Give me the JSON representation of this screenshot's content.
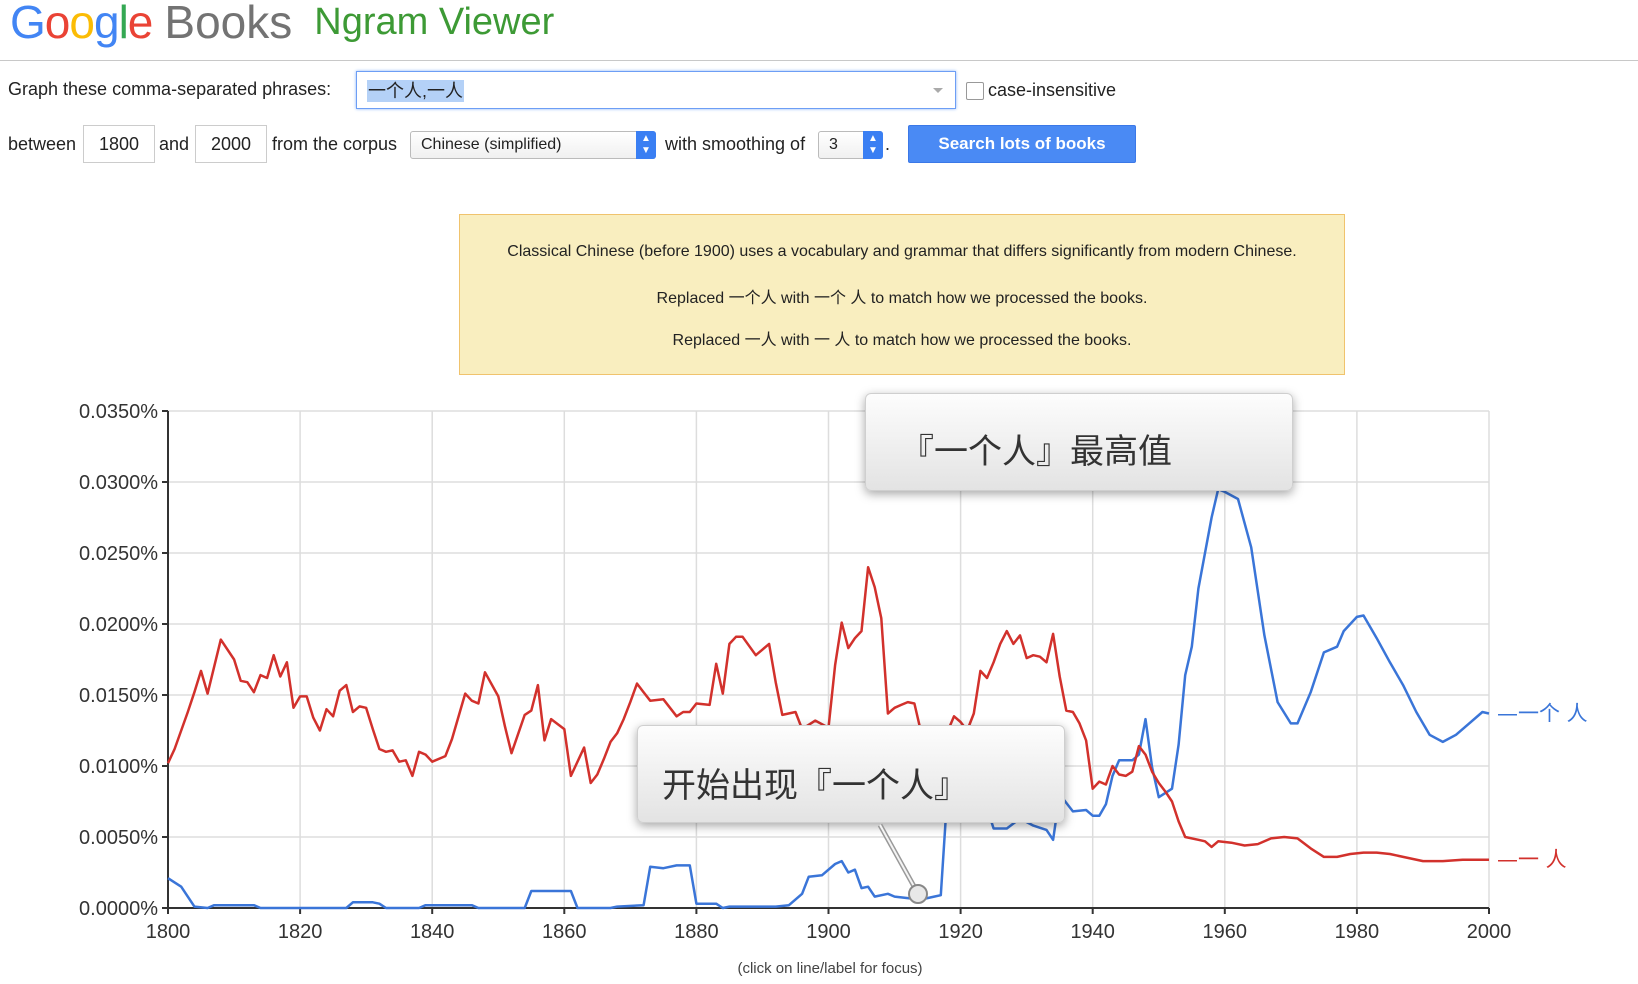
{
  "brand": {
    "google": "Google",
    "books": "Books",
    "product": "Ngram Viewer"
  },
  "colors": {
    "g_blue": "#4285f4",
    "g_red": "#ea4335",
    "g_yellow": "#fbbc05",
    "g_green": "#34a853",
    "series1": "#3a75d8",
    "series2": "#d2312c"
  },
  "form": {
    "phrases_label": "Graph these comma-separated phrases:",
    "phrases_value": "一个人,一人",
    "case_label": "case-insensitive",
    "between_label": "between",
    "start_year": "1800",
    "and_label": "and",
    "end_year": "2000",
    "corpus_label": "from the corpus",
    "corpus_value": "Chinese (simplified)",
    "smoothing_label": "with smoothing of",
    "smoothing_value": "3",
    "period": ".",
    "search_button": "Search lots of books"
  },
  "notice": {
    "line1": "Classical Chinese (before 1900) uses a vocabulary and grammar that differs significantly from modern Chinese.",
    "line2": "Replaced 一个人 with 一个 人 to match how we processed the books.",
    "line3": "Replaced 一人 with 一 人 to match how we processed the books."
  },
  "callouts": {
    "peak": "『一个人』最高值",
    "start": "开始出现『一个人』"
  },
  "footer": "(click on line/label for focus)",
  "chart_data": {
    "type": "line",
    "title": "",
    "xlabel": "",
    "ylabel": "",
    "xlim": [
      1800,
      2000
    ],
    "ylim": [
      0,
      0.035
    ],
    "x_ticks": [
      "1800",
      "1820",
      "1840",
      "1860",
      "1880",
      "1900",
      "1920",
      "1940",
      "1960",
      "1980",
      "2000"
    ],
    "y_ticks": [
      "0.0000%",
      "0.0050%",
      "0.0100%",
      "0.0150%",
      "0.0200%",
      "0.0250%",
      "0.0300%",
      "0.0350%"
    ],
    "grid": true,
    "series": [
      {
        "name": "一个 人",
        "color": "#3a75d8",
        "points": [
          [
            1800,
            0.0021
          ],
          [
            1802,
            0.0015
          ],
          [
            1804,
            0.0001
          ],
          [
            1806,
            0
          ],
          [
            1807,
            0.0002
          ],
          [
            1813,
            0.0002
          ],
          [
            1814,
            0
          ],
          [
            1827,
            0
          ],
          [
            1828,
            0.0004
          ],
          [
            1831,
            0.0004
          ],
          [
            1832,
            0.0003
          ],
          [
            1833,
            0
          ],
          [
            1838,
            0
          ],
          [
            1839,
            0.0002
          ],
          [
            1846,
            0.0002
          ],
          [
            1847,
            0
          ],
          [
            1854,
            0
          ],
          [
            1855,
            0.0012
          ],
          [
            1861,
            0.0012
          ],
          [
            1862,
            0
          ],
          [
            1867,
            0
          ],
          [
            1868,
            0.0001
          ],
          [
            1872,
            0.0002
          ],
          [
            1873,
            0.0029
          ],
          [
            1875,
            0.0028
          ],
          [
            1877,
            0.003
          ],
          [
            1879,
            0.003
          ],
          [
            1880,
            0.0003
          ],
          [
            1883,
            0.0003
          ],
          [
            1884,
            0
          ],
          [
            1885,
            0.0001
          ],
          [
            1892,
            0.0001
          ],
          [
            1894,
            0.0002
          ],
          [
            1896,
            0.001
          ],
          [
            1897,
            0.0022
          ],
          [
            1899,
            0.0023
          ],
          [
            1901,
            0.0031
          ],
          [
            1902,
            0.0033
          ],
          [
            1903,
            0.0025
          ],
          [
            1904,
            0.0027
          ],
          [
            1905,
            0.0014
          ],
          [
            1906,
            0.0015
          ],
          [
            1907,
            0.0008
          ],
          [
            1909,
            0.001
          ],
          [
            1910,
            0.0008
          ],
          [
            1912,
            0.0007
          ],
          [
            1914,
            0.0006
          ],
          [
            1916,
            0.0008
          ],
          [
            1917,
            0.0009
          ],
          [
            1918,
            0.0081
          ],
          [
            1919,
            0.0115
          ],
          [
            1923,
            0.0085
          ],
          [
            1925,
            0.0056
          ],
          [
            1927,
            0.0056
          ],
          [
            1929,
            0.0063
          ],
          [
            1931,
            0.0058
          ],
          [
            1933,
            0.0055
          ],
          [
            1934,
            0.0048
          ],
          [
            1935,
            0.008
          ],
          [
            1937,
            0.0068
          ],
          [
            1939,
            0.0069
          ],
          [
            1940,
            0.0065
          ],
          [
            1941,
            0.0065
          ],
          [
            1942,
            0.0073
          ],
          [
            1943,
            0.0093
          ],
          [
            1944,
            0.0104
          ],
          [
            1946,
            0.0104
          ],
          [
            1947,
            0.0108
          ],
          [
            1948,
            0.0133
          ],
          [
            1949,
            0.0099
          ],
          [
            1950,
            0.0078
          ],
          [
            1952,
            0.0084
          ],
          [
            1953,
            0.0115
          ],
          [
            1954,
            0.0164
          ],
          [
            1955,
            0.0184
          ],
          [
            1956,
            0.0225
          ],
          [
            1958,
            0.0275
          ],
          [
            1959,
            0.0295
          ],
          [
            1960,
            0.0293
          ],
          [
            1962,
            0.0288
          ],
          [
            1964,
            0.0254
          ],
          [
            1966,
            0.0192
          ],
          [
            1968,
            0.0145
          ],
          [
            1970,
            0.013
          ],
          [
            1971,
            0.013
          ],
          [
            1973,
            0.0152
          ],
          [
            1975,
            0.018
          ],
          [
            1977,
            0.0184
          ],
          [
            1978,
            0.0195
          ],
          [
            1980,
            0.0205
          ],
          [
            1981,
            0.0206
          ],
          [
            1983,
            0.019
          ],
          [
            1985,
            0.0173
          ],
          [
            1987,
            0.0157
          ],
          [
            1989,
            0.0138
          ],
          [
            1991,
            0.0122
          ],
          [
            1993,
            0.0117
          ],
          [
            1995,
            0.0122
          ],
          [
            1997,
            0.013
          ],
          [
            1999,
            0.0138
          ],
          [
            2000,
            0.0137
          ]
        ]
      },
      {
        "name": "一 人",
        "color": "#d2312c",
        "points": [
          [
            1800,
            0.0102
          ],
          [
            1801,
            0.0112
          ],
          [
            1803,
            0.0138
          ],
          [
            1804,
            0.0152
          ],
          [
            1805,
            0.0167
          ],
          [
            1806,
            0.0151
          ],
          [
            1807,
            0.017
          ],
          [
            1808,
            0.0189
          ],
          [
            1810,
            0.0175
          ],
          [
            1811,
            0.016
          ],
          [
            1812,
            0.0159
          ],
          [
            1813,
            0.0152
          ],
          [
            1814,
            0.0164
          ],
          [
            1815,
            0.0162
          ],
          [
            1816,
            0.0178
          ],
          [
            1817,
            0.0163
          ],
          [
            1818,
            0.0173
          ],
          [
            1819,
            0.0141
          ],
          [
            1820,
            0.0149
          ],
          [
            1821,
            0.0149
          ],
          [
            1822,
            0.0134
          ],
          [
            1823,
            0.0125
          ],
          [
            1824,
            0.014
          ],
          [
            1825,
            0.0135
          ],
          [
            1826,
            0.0153
          ],
          [
            1827,
            0.0157
          ],
          [
            1828,
            0.0138
          ],
          [
            1829,
            0.0142
          ],
          [
            1830,
            0.0141
          ],
          [
            1831,
            0.0126
          ],
          [
            1832,
            0.0112
          ],
          [
            1833,
            0.011
          ],
          [
            1834,
            0.0111
          ],
          [
            1835,
            0.0103
          ],
          [
            1836,
            0.0104
          ],
          [
            1837,
            0.0093
          ],
          [
            1838,
            0.011
          ],
          [
            1839,
            0.0108
          ],
          [
            1840,
            0.0103
          ],
          [
            1842,
            0.0107
          ],
          [
            1843,
            0.0119
          ],
          [
            1845,
            0.0151
          ],
          [
            1846,
            0.0146
          ],
          [
            1847,
            0.0144
          ],
          [
            1848,
            0.0166
          ],
          [
            1850,
            0.0149
          ],
          [
            1851,
            0.0128
          ],
          [
            1852,
            0.0109
          ],
          [
            1854,
            0.0136
          ],
          [
            1855,
            0.0139
          ],
          [
            1856,
            0.0157
          ],
          [
            1857,
            0.0118
          ],
          [
            1858,
            0.0133
          ],
          [
            1860,
            0.0126
          ],
          [
            1861,
            0.0093
          ],
          [
            1863,
            0.0113
          ],
          [
            1864,
            0.0088
          ],
          [
            1865,
            0.0094
          ],
          [
            1866,
            0.0105
          ],
          [
            1867,
            0.0117
          ],
          [
            1868,
            0.0123
          ],
          [
            1869,
            0.0133
          ],
          [
            1870,
            0.0145
          ],
          [
            1871,
            0.0158
          ],
          [
            1872,
            0.0152
          ],
          [
            1873,
            0.0146
          ],
          [
            1875,
            0.0147
          ],
          [
            1876,
            0.0141
          ],
          [
            1877,
            0.0135
          ],
          [
            1878,
            0.0138
          ],
          [
            1879,
            0.0138
          ],
          [
            1880,
            0.0144
          ],
          [
            1882,
            0.0143
          ],
          [
            1883,
            0.0172
          ],
          [
            1884,
            0.0151
          ],
          [
            1885,
            0.0186
          ],
          [
            1886,
            0.0191
          ],
          [
            1887,
            0.0191
          ],
          [
            1889,
            0.0178
          ],
          [
            1891,
            0.0186
          ],
          [
            1892,
            0.0159
          ],
          [
            1893,
            0.0136
          ],
          [
            1895,
            0.0138
          ],
          [
            1896,
            0.0126
          ],
          [
            1898,
            0.0132
          ],
          [
            1900,
            0.0127
          ],
          [
            1901,
            0.0171
          ],
          [
            1902,
            0.0201
          ],
          [
            1903,
            0.0183
          ],
          [
            1904,
            0.019
          ],
          [
            1905,
            0.0195
          ],
          [
            1906,
            0.024
          ],
          [
            1907,
            0.0226
          ],
          [
            1908,
            0.0204
          ],
          [
            1909,
            0.0137
          ],
          [
            1910,
            0.0141
          ],
          [
            1911,
            0.0143
          ],
          [
            1912,
            0.0145
          ],
          [
            1913,
            0.0144
          ],
          [
            1914,
            0.0124
          ],
          [
            1918,
            0.0124
          ],
          [
            1919,
            0.0135
          ],
          [
            1920,
            0.0131
          ],
          [
            1921,
            0.0125
          ],
          [
            1922,
            0.0137
          ],
          [
            1923,
            0.0167
          ],
          [
            1924,
            0.0162
          ],
          [
            1925,
            0.0173
          ],
          [
            1926,
            0.0186
          ],
          [
            1927,
            0.0195
          ],
          [
            1928,
            0.0186
          ],
          [
            1929,
            0.0192
          ],
          [
            1930,
            0.0176
          ],
          [
            1931,
            0.0178
          ],
          [
            1932,
            0.0177
          ],
          [
            1933,
            0.0173
          ],
          [
            1934,
            0.0193
          ],
          [
            1935,
            0.0163
          ],
          [
            1936,
            0.0139
          ],
          [
            1937,
            0.0138
          ],
          [
            1938,
            0.013
          ],
          [
            1939,
            0.0118
          ],
          [
            1940,
            0.0084
          ],
          [
            1941,
            0.0089
          ],
          [
            1942,
            0.0087
          ],
          [
            1943,
            0.01
          ],
          [
            1944,
            0.0094
          ],
          [
            1945,
            0.0093
          ],
          [
            1946,
            0.0096
          ],
          [
            1947,
            0.0114
          ],
          [
            1948,
            0.0108
          ],
          [
            1949,
            0.0096
          ],
          [
            1950,
            0.0088
          ],
          [
            1951,
            0.0082
          ],
          [
            1952,
            0.0075
          ],
          [
            1953,
            0.0061
          ],
          [
            1954,
            0.005
          ],
          [
            1956,
            0.0048
          ],
          [
            1957,
            0.0047
          ],
          [
            1958,
            0.0043
          ],
          [
            1959,
            0.0047
          ],
          [
            1961,
            0.0046
          ],
          [
            1963,
            0.0044
          ],
          [
            1965,
            0.0045
          ],
          [
            1967,
            0.0049
          ],
          [
            1969,
            0.005
          ],
          [
            1971,
            0.0049
          ],
          [
            1973,
            0.0042
          ],
          [
            1975,
            0.0036
          ],
          [
            1977,
            0.0036
          ],
          [
            1979,
            0.0038
          ],
          [
            1981,
            0.0039
          ],
          [
            1983,
            0.0039
          ],
          [
            1985,
            0.0038
          ],
          [
            1987,
            0.0036
          ],
          [
            1990,
            0.0033
          ],
          [
            1993,
            0.0033
          ],
          [
            1996,
            0.0034
          ],
          [
            2000,
            0.0034
          ]
        ]
      }
    ]
  }
}
